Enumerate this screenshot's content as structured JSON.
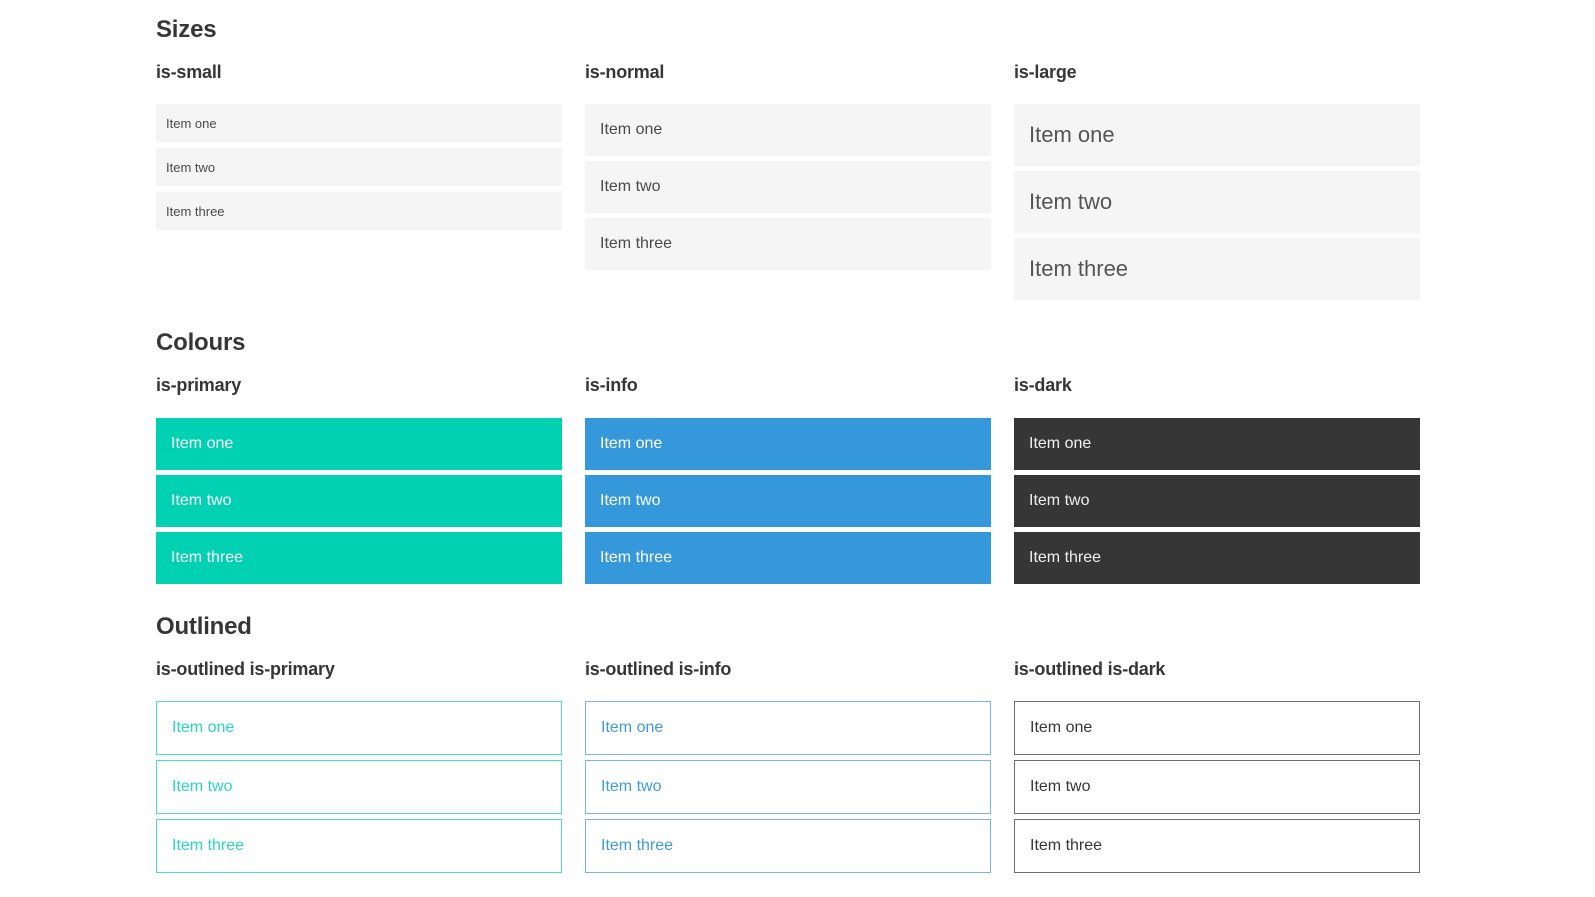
{
  "colors": {
    "primary": "#00d1b2",
    "info": "#3498db",
    "dark": "#363636",
    "item_background": "#f5f5f5",
    "item_text": "#4a4a4a",
    "heading_text": "#363636"
  },
  "sections": [
    {
      "title": "Sizes",
      "columns": [
        {
          "heading": "is-small",
          "items": [
            "Item one",
            "Item two",
            "Item three"
          ]
        },
        {
          "heading": "is-normal",
          "items": [
            "Item one",
            "Item two",
            "Item three"
          ]
        },
        {
          "heading": "is-large",
          "items": [
            "Item one",
            "Item two",
            "Item three"
          ]
        }
      ]
    },
    {
      "title": "Colours",
      "columns": [
        {
          "heading": "is-primary",
          "items": [
            "Item one",
            "Item two",
            "Item three"
          ]
        },
        {
          "heading": "is-info",
          "items": [
            "Item one",
            "Item two",
            "Item three"
          ]
        },
        {
          "heading": "is-dark",
          "items": [
            "Item one",
            "Item two",
            "Item three"
          ]
        }
      ]
    },
    {
      "title": "Outlined",
      "columns": [
        {
          "heading": "is-outlined is-primary",
          "items": [
            "Item one",
            "Item two",
            "Item three"
          ]
        },
        {
          "heading": "is-outlined is-info",
          "items": [
            "Item one",
            "Item two",
            "Item three"
          ]
        },
        {
          "heading": "is-outlined is-dark",
          "items": [
            "Item one",
            "Item two",
            "Item three"
          ]
        }
      ]
    }
  ]
}
